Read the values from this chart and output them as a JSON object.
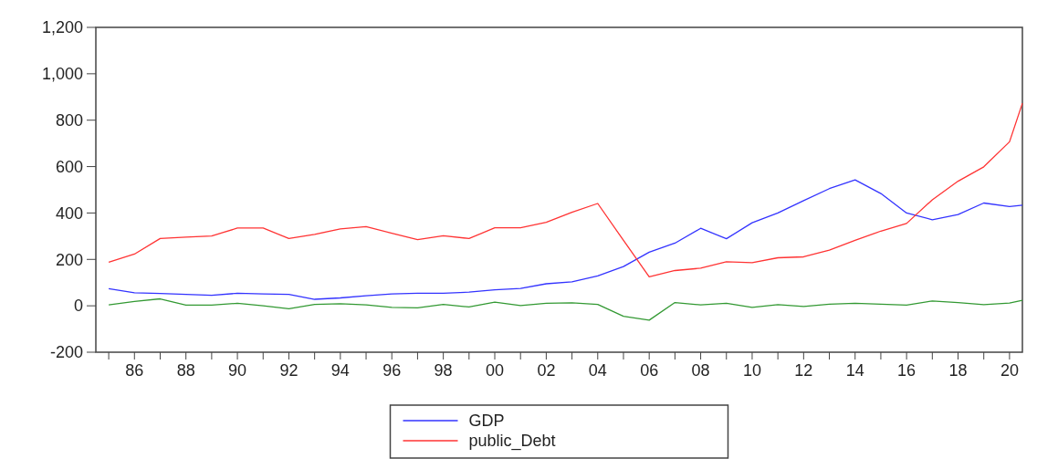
{
  "chart_data": {
    "type": "line",
    "x": [
      1985,
      1986,
      1987,
      1988,
      1989,
      1990,
      1991,
      1992,
      1993,
      1994,
      1995,
      1996,
      1997,
      1998,
      1999,
      2000,
      2001,
      2002,
      2003,
      2004,
      2005,
      2006,
      2007,
      2008,
      2009,
      2010,
      2011,
      2012,
      2013,
      2014,
      2015,
      2016,
      2017,
      2018,
      2019,
      2020,
      2020.5
    ],
    "series": [
      {
        "name": "GDP",
        "color": "#3333ff",
        "values": [
          74,
          56,
          53,
          49,
          45,
          54,
          51,
          49,
          28,
          34,
          43,
          51,
          54,
          54,
          59,
          69,
          75,
          95,
          103,
          129,
          169,
          231,
          270,
          334,
          289,
          358,
          400,
          453,
          505,
          543,
          484,
          400,
          371,
          393,
          443,
          428,
          434
        ]
      },
      {
        "name": "public_Debt",
        "color": "#ff3333",
        "values": [
          188,
          223,
          290,
          296,
          301,
          335,
          335,
          290,
          308,
          331,
          341,
          313,
          285,
          302,
          290,
          336,
          336,
          360,
          403,
          441,
          282,
          125,
          152,
          162,
          190,
          186,
          207,
          211,
          240,
          282,
          322,
          355,
          457,
          537,
          599,
          707,
          873
        ]
      },
      {
        "color": "#339933",
        "values": [
          4,
          19,
          30,
          3,
          3,
          11,
          0,
          -13,
          6,
          9,
          4,
          -7,
          -9,
          6,
          -5,
          16,
          1,
          11,
          13,
          6,
          -45,
          -62,
          14,
          4,
          11,
          -7,
          5,
          -3,
          7,
          11,
          7,
          3,
          21,
          14,
          5,
          12,
          24
        ]
      }
    ],
    "xlim": [
      1984.5,
      2020.5
    ],
    "xticks": [
      {
        "value": 1985,
        "label": null
      },
      {
        "value": 1986,
        "label": "86"
      },
      {
        "value": 1987,
        "label": null
      },
      {
        "value": 1988,
        "label": "88"
      },
      {
        "value": 1989,
        "label": null
      },
      {
        "value": 1990,
        "label": "90"
      },
      {
        "value": 1991,
        "label": null
      },
      {
        "value": 1992,
        "label": "92"
      },
      {
        "value": 1993,
        "label": null
      },
      {
        "value": 1994,
        "label": "94"
      },
      {
        "value": 1995,
        "label": null
      },
      {
        "value": 1996,
        "label": "96"
      },
      {
        "value": 1997,
        "label": null
      },
      {
        "value": 1998,
        "label": "98"
      },
      {
        "value": 1999,
        "label": null
      },
      {
        "value": 2000,
        "label": "00"
      },
      {
        "value": 2001,
        "label": null
      },
      {
        "value": 2002,
        "label": "02"
      },
      {
        "value": 2003,
        "label": null
      },
      {
        "value": 2004,
        "label": "04"
      },
      {
        "value": 2005,
        "label": null
      },
      {
        "value": 2006,
        "label": "06"
      },
      {
        "value": 2007,
        "label": null
      },
      {
        "value": 2008,
        "label": "08"
      },
      {
        "value": 2009,
        "label": null
      },
      {
        "value": 2010,
        "label": "10"
      },
      {
        "value": 2011,
        "label": null
      },
      {
        "value": 2012,
        "label": "12"
      },
      {
        "value": 2013,
        "label": null
      },
      {
        "value": 2014,
        "label": "14"
      },
      {
        "value": 2015,
        "label": null
      },
      {
        "value": 2016,
        "label": "16"
      },
      {
        "value": 2017,
        "label": null
      },
      {
        "value": 2018,
        "label": "18"
      },
      {
        "value": 2019,
        "label": null
      },
      {
        "value": 2020,
        "label": "20"
      }
    ],
    "ylim": [
      -200,
      1200
    ],
    "yticks": [
      -200,
      0,
      200,
      {
        "value": 400,
        "label": "400"
      },
      600,
      800,
      {
        "value": 1000,
        "label": "1,000"
      },
      {
        "value": 1200,
        "label": "1,200"
      }
    ],
    "legend": "bottom",
    "grid": false
  }
}
